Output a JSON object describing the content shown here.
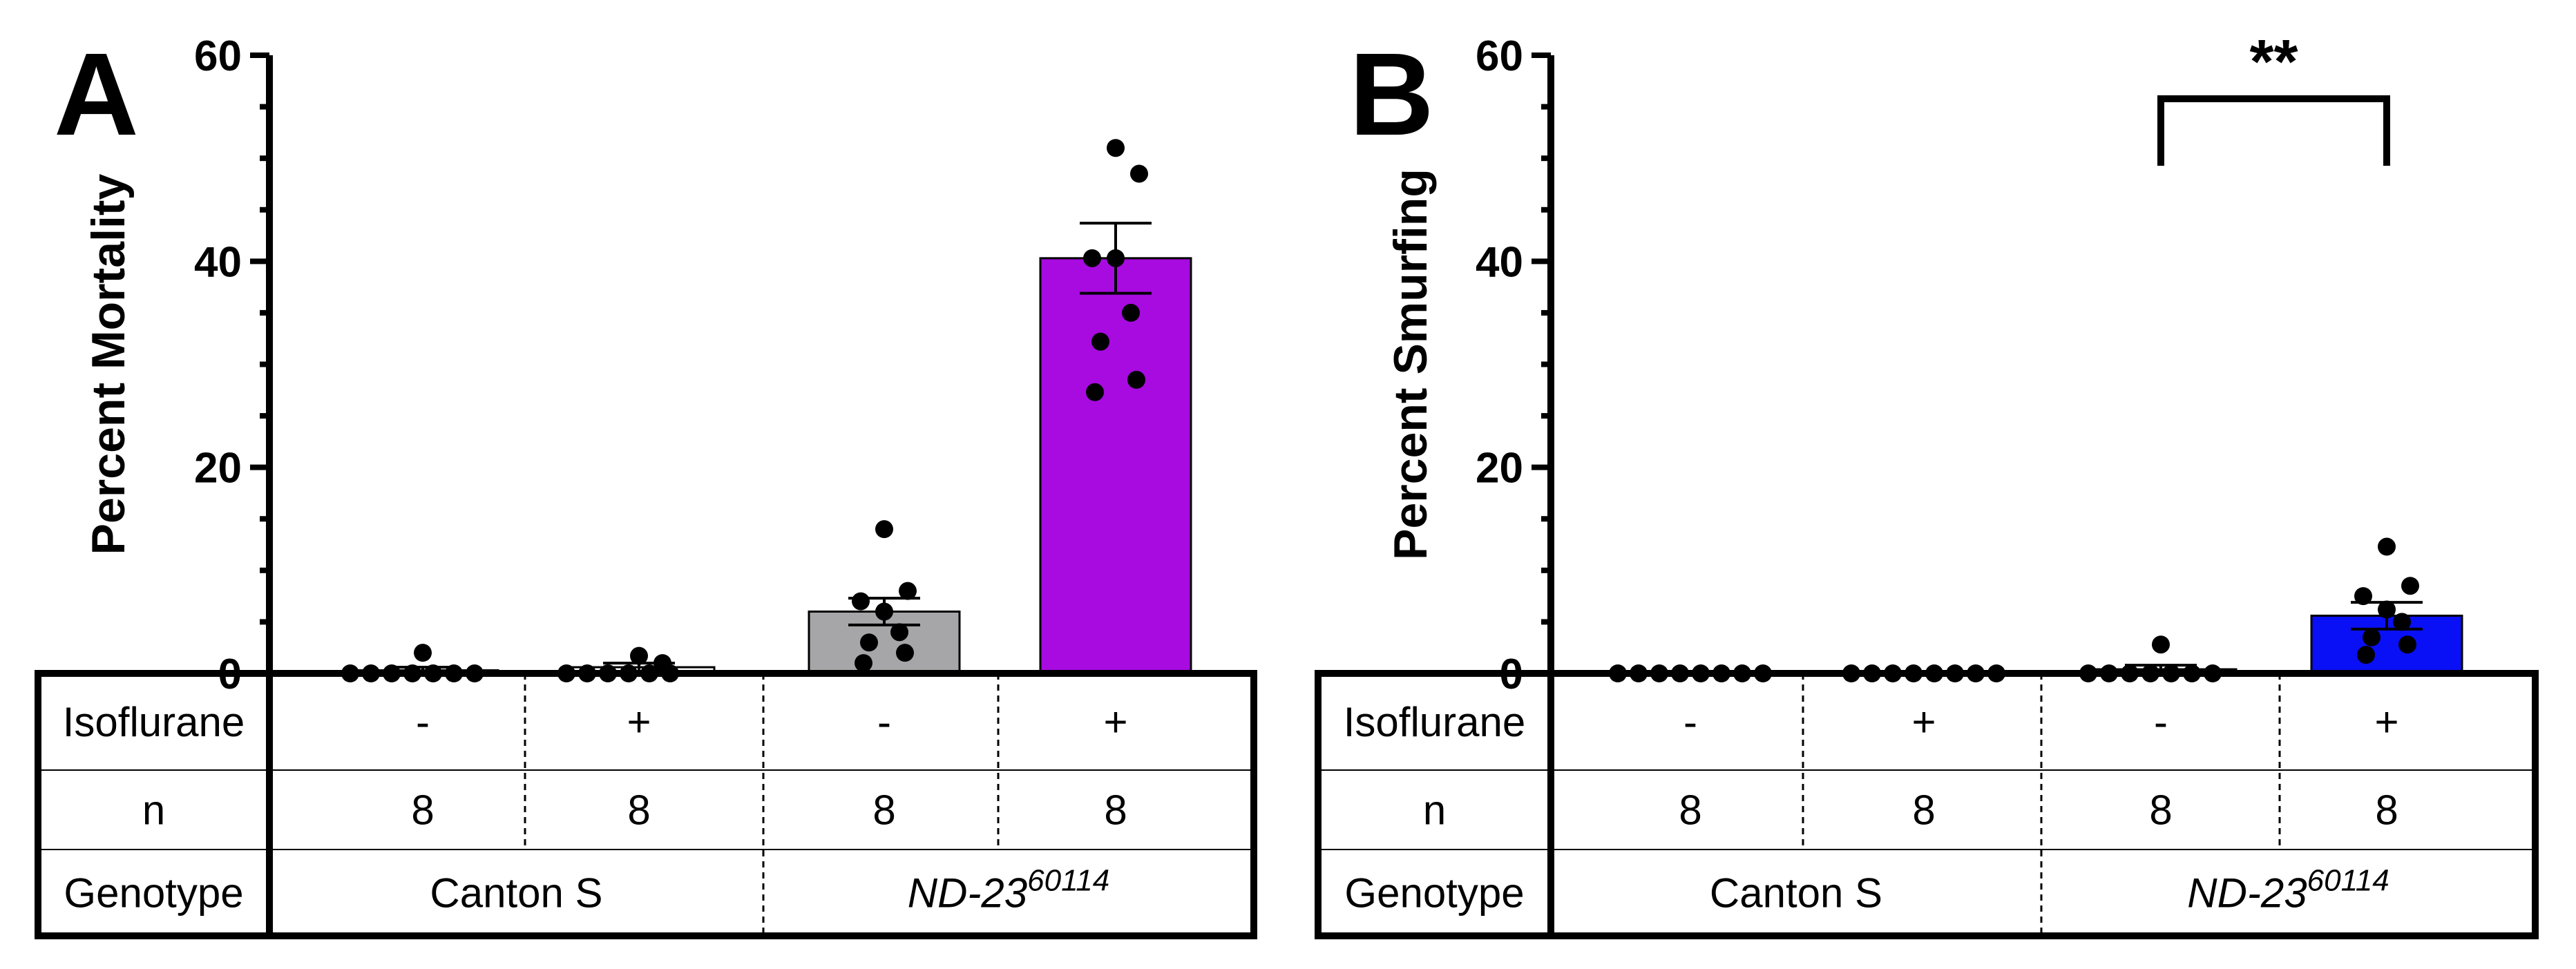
{
  "chart_data": [
    {
      "type": "bar",
      "panel": "A",
      "ylabel": "Percent Mortality",
      "ylim": [
        0,
        60
      ],
      "yticks": [
        0,
        20,
        40,
        60
      ],
      "categories": [
        "Canton S / Isoflurane -",
        "Canton S / Isoflurane +",
        "ND-23 60114 / Isoflurane -",
        "ND-23 60114 / Isoflurane +"
      ],
      "values": [
        0.3,
        0.6,
        6.0,
        40.3
      ],
      "sem": [
        0.3,
        0.4,
        1.3,
        3.4
      ],
      "colors": [
        "#ffffff",
        "#ffffff",
        "#a6a6a8",
        "#a70be0"
      ],
      "points": [
        [
          0,
          0,
          0,
          0,
          0,
          0,
          0,
          2
        ],
        [
          0,
          0,
          0,
          0,
          0,
          0,
          1,
          1.7
        ],
        [
          1,
          2,
          3,
          4,
          6,
          7,
          8,
          14
        ],
        [
          27.3,
          28.5,
          32.2,
          35,
          40.3,
          40.3,
          48.5,
          51
        ]
      ],
      "significance": null
    },
    {
      "type": "bar",
      "panel": "B",
      "ylabel": "Percent Smurfing",
      "ylim": [
        0,
        60
      ],
      "yticks": [
        0,
        20,
        40,
        60
      ],
      "categories": [
        "Canton S / Isoflurane -",
        "Canton S / Isoflurane +",
        "ND-23 60114 / Isoflurane -",
        "ND-23 60114 / Isoflurane +"
      ],
      "values": [
        0,
        0,
        0.4,
        5.6
      ],
      "sem": [
        0,
        0,
        0.4,
        1.3
      ],
      "colors": [
        "#ffffff",
        "#ffffff",
        "#ffffff",
        "#0a10f5"
      ],
      "points": [
        [
          0,
          0,
          0,
          0,
          0,
          0,
          0,
          0
        ],
        [
          0,
          0,
          0,
          0,
          0,
          0,
          0,
          0
        ],
        [
          0,
          0,
          0,
          0,
          0,
          0,
          0,
          2.8
        ],
        [
          1.8,
          2.8,
          3.5,
          5,
          6.2,
          7.5,
          8.5,
          12.3
        ]
      ],
      "significance": {
        "label": "**",
        "from": 2,
        "to": 3
      }
    }
  ],
  "table": {
    "row_labels": [
      "Isoflurane",
      "n",
      "Genotype"
    ],
    "isoflurane": [
      "-",
      "+",
      "-",
      "+"
    ],
    "n": [
      "8",
      "8",
      "8",
      "8"
    ],
    "genotypes": [
      {
        "name": "Canton S",
        "sup": ""
      },
      {
        "name": "ND-23",
        "sup": "60114"
      }
    ]
  }
}
